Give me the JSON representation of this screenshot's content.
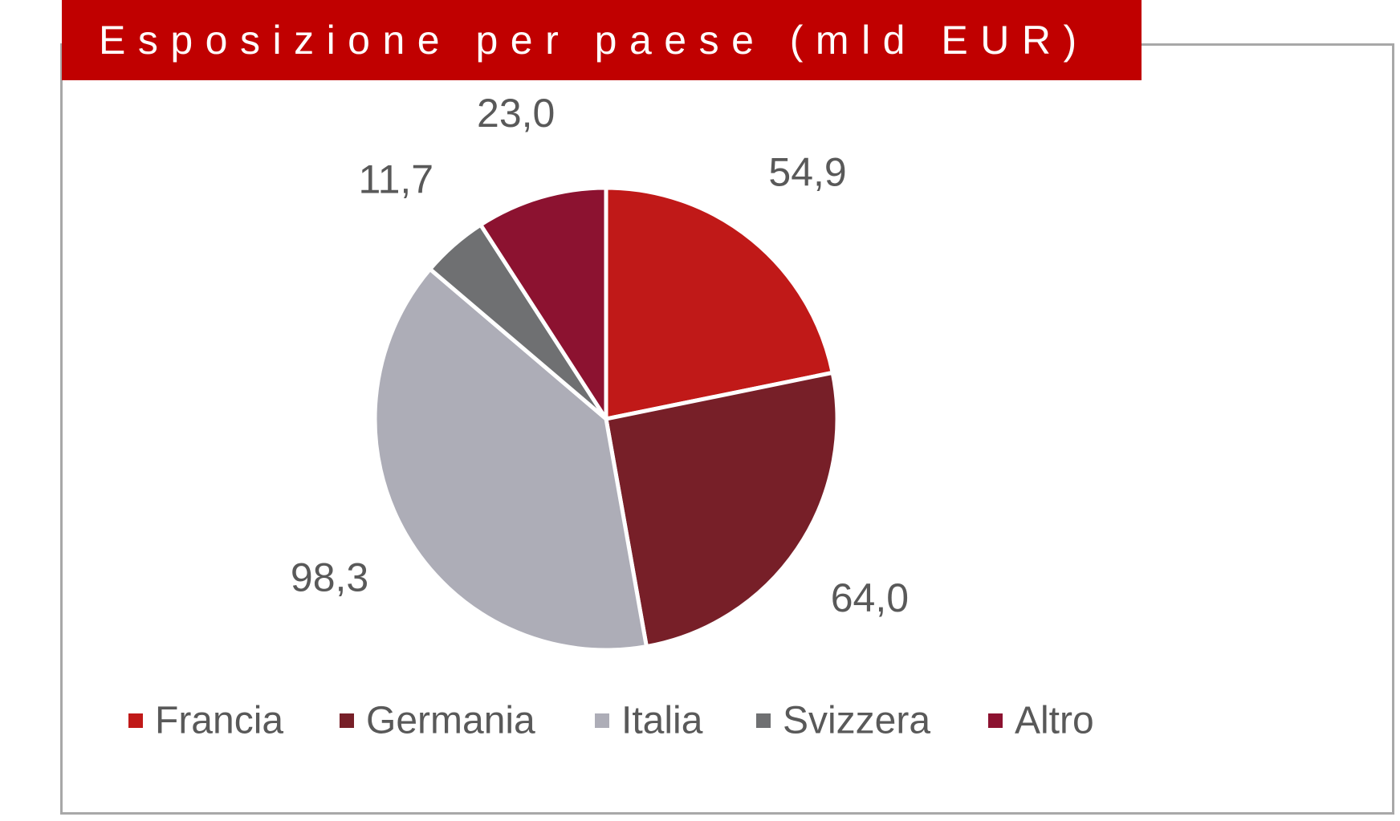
{
  "chart_data": {
    "type": "pie",
    "title": "Esposizione per paese (mld EUR)",
    "categories": [
      "Francia",
      "Germania",
      "Italia",
      "Svizzera",
      "Altro"
    ],
    "values": [
      54.9,
      64.0,
      98.3,
      11.7,
      23.0
    ],
    "value_labels": [
      "54,9",
      "64,0",
      "98,3",
      "11,7",
      "23,0"
    ],
    "colors": [
      "#c01918",
      "#771f28",
      "#adadb7",
      "#6f7072",
      "#8c1230"
    ],
    "start_angle_deg": 0,
    "direction": "clockwise",
    "legend_position": "bottom",
    "grid": false
  },
  "style": {
    "title_bar_color": "#c00000",
    "title_text_color": "#ffffff",
    "label_color": "#595959",
    "frame_color": "#a8a8a8"
  }
}
